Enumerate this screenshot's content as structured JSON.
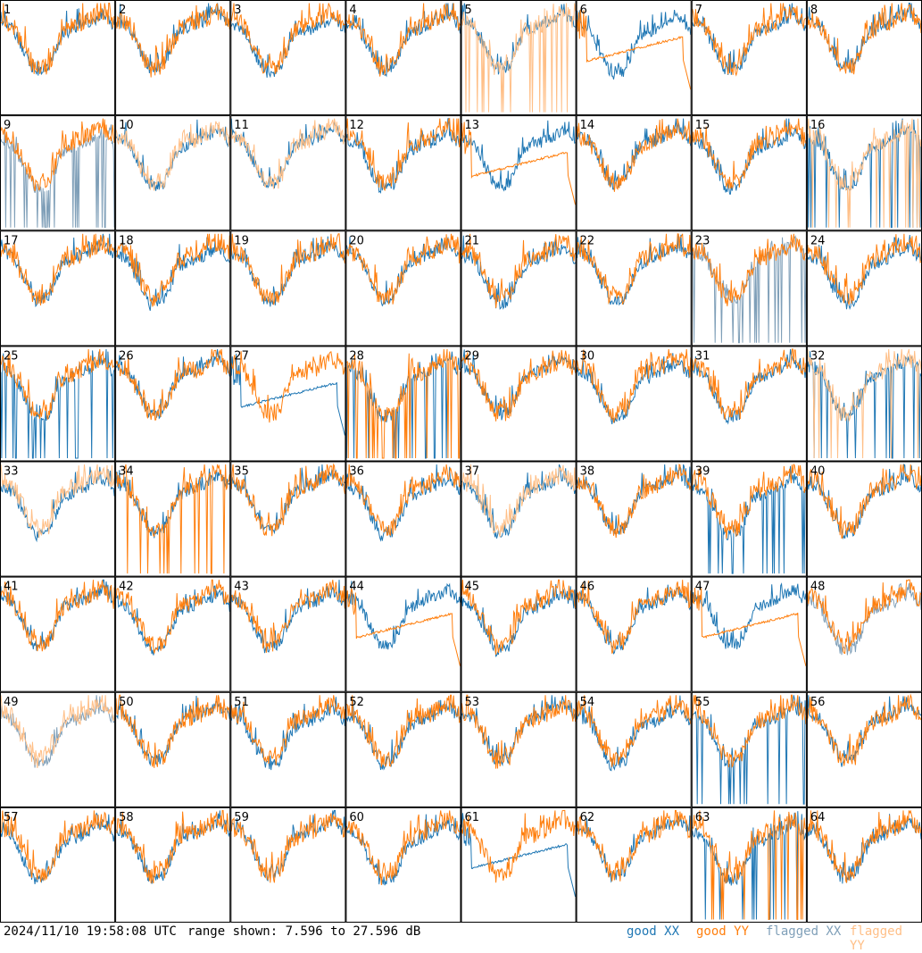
{
  "chart_data": {
    "type": "line",
    "panel_count": 64,
    "grid_cols": 8,
    "grid_rows": 8,
    "panel_labels": [
      "1",
      "2",
      "3",
      "4",
      "5",
      "6",
      "7",
      "8",
      "9",
      "10",
      "11",
      "12",
      "13",
      "14",
      "15",
      "16",
      "17",
      "18",
      "19",
      "20",
      "21",
      "22",
      "23",
      "24",
      "25",
      "26",
      "27",
      "28",
      "29",
      "30",
      "31",
      "32",
      "33",
      "34",
      "35",
      "36",
      "37",
      "38",
      "39",
      "40",
      "41",
      "42",
      "43",
      "44",
      "45",
      "46",
      "47",
      "48",
      "49",
      "50",
      "51",
      "52",
      "53",
      "54",
      "55",
      "56",
      "57",
      "58",
      "59",
      "60",
      "61",
      "62",
      "63",
      "64"
    ],
    "y_range_db": [
      7.596,
      27.596
    ],
    "series": [
      {
        "name": "good XX",
        "color": "#1f77b4"
      },
      {
        "name": "good YY",
        "color": "#ff7f0e"
      },
      {
        "name": "flagged XX",
        "color": "#7f9fb8"
      },
      {
        "name": "flagged YY",
        "color": "#ffbf87"
      }
    ],
    "panel_status": {
      "flagged_xx": [
        9,
        23,
        48,
        49
      ],
      "flagged_yy": [
        5,
        10,
        11,
        16,
        32,
        33,
        37,
        49
      ],
      "dropout_xx": [
        9,
        16,
        23,
        25,
        32,
        39,
        55
      ],
      "dropout_yy": [
        5,
        16,
        28,
        32,
        34,
        63
      ],
      "dropout_both": [
        28,
        63
      ],
      "flat_yy": [
        6,
        13,
        44,
        47
      ],
      "flat_xx": [
        27,
        61
      ]
    }
  },
  "footer": {
    "timestamp": "2024/11/10 19:58:08 UTC",
    "range_text": "range shown: 7.596 to 27.596 dB",
    "legend": [
      {
        "label": "good XX",
        "color": "#1f77b4"
      },
      {
        "label": "good YY",
        "color": "#ff7f0e"
      },
      {
        "label": "flagged XX",
        "color": "#7f9fb8"
      },
      {
        "label": "flagged YY",
        "color": "#ffbf87"
      }
    ]
  }
}
